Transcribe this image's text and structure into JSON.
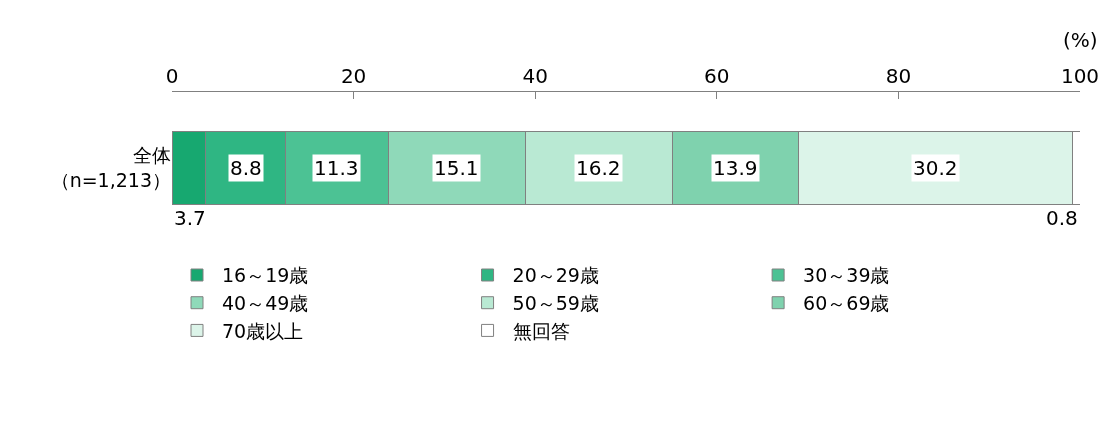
{
  "chart_data": {
    "type": "bar",
    "orientation": "horizontal",
    "stacked": true,
    "xlabel": "(%)",
    "categories": [
      "全体（n=1,213）"
    ],
    "series": [
      {
        "name": "16～19歳",
        "color": "#17a870",
        "values": [
          3.7
        ]
      },
      {
        "name": "20～29歳",
        "color": "#2fb683",
        "values": [
          8.8
        ]
      },
      {
        "name": "30～39歳",
        "color": "#4cc294",
        "values": [
          11.3
        ]
      },
      {
        "name": "40～49歳",
        "color": "#8fd9b9",
        "values": [
          15.1
        ]
      },
      {
        "name": "50～59歳",
        "color": "#b9e9d3",
        "values": [
          16.2
        ]
      },
      {
        "name": "60～69歳",
        "color": "#7fd2ae",
        "values": [
          13.9
        ]
      },
      {
        "name": "70歳以上",
        "color": "#dcf4e9",
        "values": [
          30.2
        ]
      },
      {
        "name": "無回答",
        "color": "#ffffff",
        "values": [
          0.8
        ]
      }
    ],
    "xlim": [
      0,
      100
    ],
    "xticks": [
      0,
      20,
      40,
      60,
      80,
      100
    ],
    "data_labels": true,
    "legend": "bottom"
  }
}
